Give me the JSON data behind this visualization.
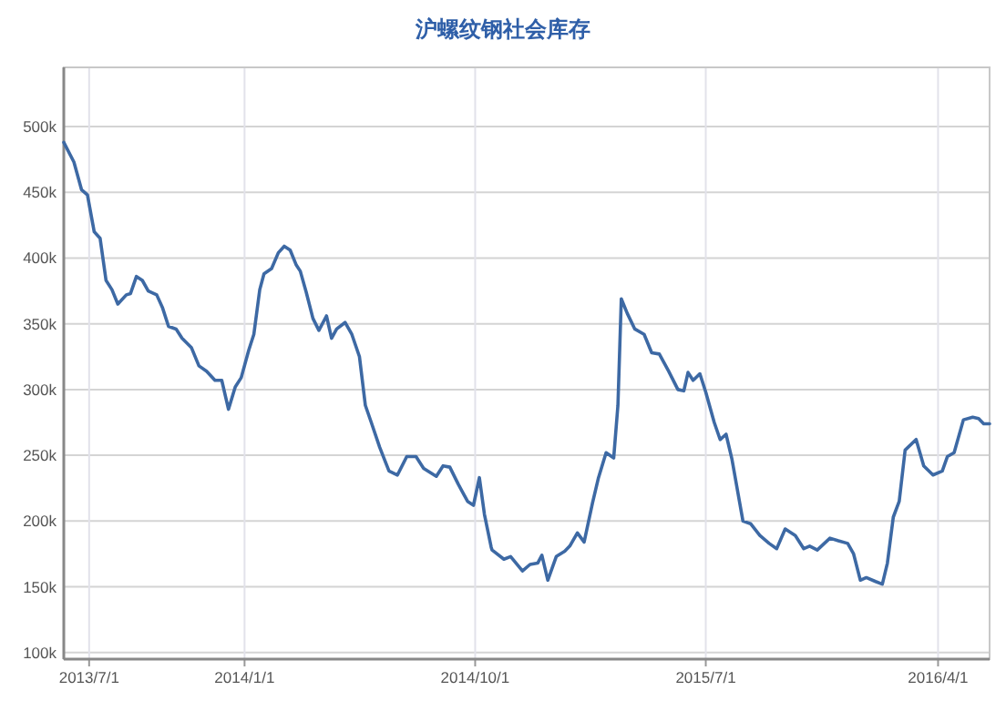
{
  "chart_data": {
    "type": "line",
    "title": "沪螺纹钢社会库存",
    "x": [
      "2013-06-01",
      "2013-06-13",
      "2013-06-22",
      "2013-06-29",
      "2013-07-07",
      "2013-07-14",
      "2013-07-21",
      "2013-07-28",
      "2013-08-04",
      "2013-08-14",
      "2013-08-19",
      "2013-08-26",
      "2013-09-02",
      "2013-09-09",
      "2013-09-19",
      "2013-09-26",
      "2013-10-03",
      "2013-10-12",
      "2013-10-19",
      "2013-10-30",
      "2013-11-08",
      "2013-11-17",
      "2013-11-27",
      "2013-12-05",
      "2013-12-13",
      "2013-12-21",
      "2013-12-28",
      "2014-01-06",
      "2014-01-12",
      "2014-01-19",
      "2014-01-24",
      "2014-02-02",
      "2014-02-10",
      "2014-02-17",
      "2014-02-24",
      "2014-03-03",
      "2014-03-08",
      "2014-03-15",
      "2014-03-23",
      "2014-03-30",
      "2014-04-08",
      "2014-04-14",
      "2014-04-20",
      "2014-04-30",
      "2014-05-08",
      "2014-05-17",
      "2014-05-24",
      "2014-05-31",
      "2014-06-10",
      "2014-06-21",
      "2014-07-01",
      "2014-07-12",
      "2014-07-23",
      "2014-08-01",
      "2014-08-16",
      "2014-08-24",
      "2014-09-01",
      "2014-09-11",
      "2014-09-22",
      "2014-09-29",
      "2014-10-06",
      "2014-10-12",
      "2014-10-20",
      "2014-10-21",
      "2014-11-04",
      "2014-11-12",
      "2014-11-26",
      "2014-12-05",
      "2014-12-14",
      "2014-12-19",
      "2014-12-26",
      "2015-01-05",
      "2015-01-15",
      "2015-01-21",
      "2015-01-30",
      "2015-02-07",
      "2015-02-17",
      "2015-02-24",
      "2015-03-05",
      "2015-03-14",
      "2015-03-19",
      "2015-03-23",
      "2015-03-30",
      "2015-04-08",
      "2015-04-19",
      "2015-04-28",
      "2015-05-07",
      "2015-05-18",
      "2015-05-29",
      "2015-06-05",
      "2015-06-10",
      "2015-06-16",
      "2015-06-24",
      "2015-07-01",
      "2015-07-11",
      "2015-07-18",
      "2015-07-25",
      "2015-08-01",
      "2015-08-14",
      "2015-08-23",
      "2015-09-03",
      "2015-09-14",
      "2015-09-23",
      "2015-10-03",
      "2015-10-15",
      "2015-10-25",
      "2015-11-01",
      "2015-11-10",
      "2015-11-25",
      "2015-12-05",
      "2015-12-16",
      "2015-12-23",
      "2015-12-31",
      "2016-01-07",
      "2016-01-18",
      "2016-01-26",
      "2016-02-01",
      "2016-02-08",
      "2016-02-15",
      "2016-02-22",
      "2016-03-06",
      "2016-03-15",
      "2016-03-26",
      "2016-04-06",
      "2016-04-12",
      "2016-04-20",
      "2016-05-01",
      "2016-05-12",
      "2016-05-19",
      "2016-05-25",
      "2016-06-01"
    ],
    "series": [
      {
        "color": "#3d69a4",
        "values": [
          488,
          473,
          452,
          448,
          420,
          415,
          383,
          376,
          365,
          372,
          373,
          386,
          383,
          375,
          372,
          362,
          348,
          346,
          339,
          332,
          318,
          314,
          307,
          307,
          285,
          302,
          309,
          330,
          342,
          376,
          388,
          392,
          404,
          409,
          406,
          395,
          390,
          374,
          354,
          345,
          356,
          339,
          346,
          351,
          342,
          325,
          288,
          275,
          256,
          238,
          235,
          249,
          249,
          240,
          234,
          242,
          241,
          228,
          215,
          212,
          233,
          205,
          180,
          178,
          171,
          173,
          162,
          167,
          168,
          174,
          155,
          173,
          177,
          181,
          191,
          184,
          214,
          233,
          252,
          248,
          288,
          369,
          358,
          346,
          342,
          328,
          327,
          314,
          300,
          299,
          313,
          307,
          312,
          298,
          275,
          262,
          266,
          247,
          200,
          198,
          189,
          183,
          179,
          194,
          189,
          179,
          181,
          178,
          187,
          185,
          183,
          175,
          155,
          157,
          154,
          152,
          168,
          203,
          215,
          254,
          262,
          242,
          235,
          238,
          249,
          252,
          277,
          279,
          278,
          274,
          274
        ]
      }
    ],
    "xlim": [
      "2013-06-01",
      "2016-06-01"
    ],
    "xticks": [
      {
        "value": "2013-07-01",
        "label": "2013/7/1"
      },
      {
        "value": "2014-01-01",
        "label": "2014/1/1"
      },
      {
        "value": "2014-10-01",
        "label": "2014/10/1"
      },
      {
        "value": "2015-07-01",
        "label": "2015/7/1"
      },
      {
        "value": "2016-04-01",
        "label": "2016/4/1"
      }
    ],
    "ylim": [
      95,
      545
    ],
    "yticks": [
      {
        "value": 100,
        "label": "100k"
      },
      {
        "value": 150,
        "label": "150k"
      },
      {
        "value": 200,
        "label": "200k"
      },
      {
        "value": 250,
        "label": "250k"
      },
      {
        "value": 300,
        "label": "300k"
      },
      {
        "value": 350,
        "label": "350k"
      },
      {
        "value": 400,
        "label": "400k"
      },
      {
        "value": 450,
        "label": "450k"
      },
      {
        "value": 500,
        "label": "500k"
      }
    ],
    "grid": true,
    "marker": "none",
    "line_style": "solid"
  }
}
